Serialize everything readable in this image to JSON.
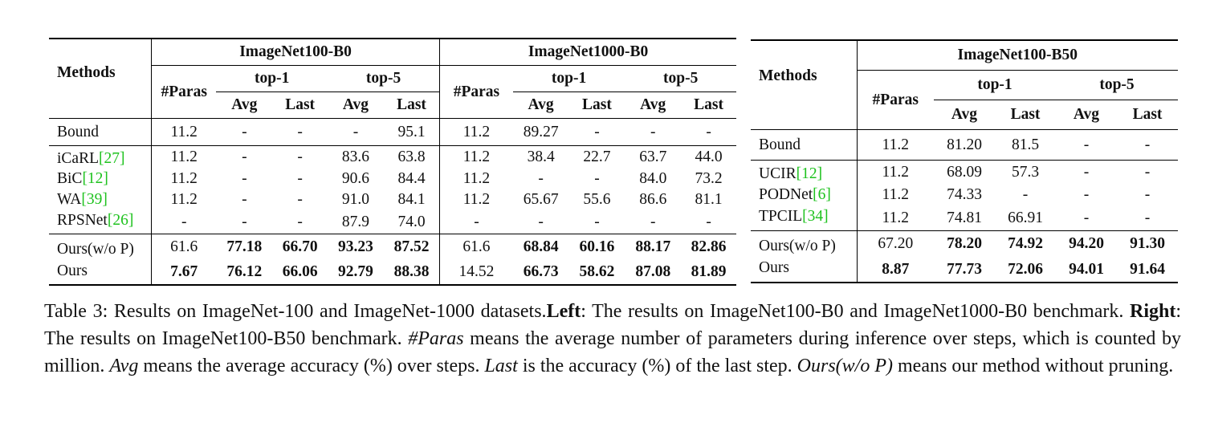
{
  "left_table": {
    "methods_header": "Methods",
    "dataset_a": "ImageNet100-B0",
    "dataset_b": "ImageNet1000-B0",
    "paras_header": "#Paras",
    "top1": "top-1",
    "top5": "top-5",
    "avg": "Avg",
    "last": "Last",
    "bound": {
      "name": "Bound",
      "values": [
        "11.2",
        "-",
        "-",
        "-",
        "95.1",
        "11.2",
        "89.27",
        "-",
        "-",
        "-"
      ]
    },
    "baselines": [
      {
        "name": "iCaRL",
        "cite": "[27]",
        "values": [
          "11.2",
          "-",
          "-",
          "83.6",
          "63.8",
          "11.2",
          "38.4",
          "22.7",
          "63.7",
          "44.0"
        ]
      },
      {
        "name": "BiC",
        "cite": "[12]",
        "values": [
          "11.2",
          "-",
          "-",
          "90.6",
          "84.4",
          "11.2",
          "-",
          "-",
          "84.0",
          "73.2"
        ]
      },
      {
        "name": "WA",
        "cite": "[39]",
        "values": [
          "11.2",
          "-",
          "-",
          "91.0",
          "84.1",
          "11.2",
          "65.67",
          "55.6",
          "86.6",
          "81.1"
        ]
      },
      {
        "name": "RPSNet",
        "cite": "[26]",
        "values": [
          "-",
          "-",
          "-",
          "87.9",
          "74.0",
          "-",
          "-",
          "-",
          "-",
          "-"
        ]
      }
    ],
    "ours": [
      {
        "name": "Ours(w/o P)",
        "values": [
          "61.6",
          "77.18",
          "66.70",
          "93.23",
          "87.52",
          "61.6",
          "68.84",
          "60.16",
          "88.17",
          "82.86"
        ]
      },
      {
        "name": "Ours",
        "values": [
          "7.67",
          "76.12",
          "66.06",
          "92.79",
          "88.38",
          "14.52",
          "66.73",
          "58.62",
          "87.08",
          "81.89"
        ]
      }
    ]
  },
  "right_table": {
    "methods_header": "Methods",
    "dataset": "ImageNet100-B50",
    "paras_header": "#Paras",
    "top1": "top-1",
    "top5": "top-5",
    "avg": "Avg",
    "last": "Last",
    "bound": {
      "name": "Bound",
      "values": [
        "11.2",
        "81.20",
        "81.5",
        "-",
        "-"
      ]
    },
    "baselines": [
      {
        "name": "UCIR",
        "cite": "[12]",
        "values": [
          "11.2",
          "68.09",
          "57.3",
          "-",
          "-"
        ]
      },
      {
        "name": "PODNet",
        "cite": "[6]",
        "values": [
          "11.2",
          "74.33",
          "-",
          "-",
          "-"
        ]
      },
      {
        "name": "TPCIL",
        "cite": "[34]",
        "values": [
          "11.2",
          "74.81",
          "66.91",
          "-",
          "-"
        ]
      }
    ],
    "ours": [
      {
        "name": "Ours(w/o P)",
        "values": [
          "67.20",
          "78.20",
          "74.92",
          "94.20",
          "91.30"
        ]
      },
      {
        "name": "Ours",
        "values": [
          "8.87",
          "77.73",
          "72.06",
          "94.01",
          "91.64"
        ]
      }
    ]
  },
  "caption": {
    "label": "Table 3: Results on ImageNet-100 and ImageNet-1000 datasets.",
    "left_word": "Left",
    "left_text": ": The results on ImageNet100-B0 and ImageNet1000-B0 benchmark. ",
    "right_word": "Right",
    "right_text": ": The results on ImageNet100-B50 benchmark. ",
    "paras_term": "#Paras",
    "paras_text": " means the average number of parameters during inference over steps, which is counted by million. ",
    "avg_term": "Avg",
    "avg_text": " means the average accuracy (%) over steps. ",
    "last_term": "Last",
    "last_text": " is the accuracy (%) of the last step. ",
    "ours_term": "Ours(w/o P)",
    "ours_text": " means our method without pruning."
  }
}
